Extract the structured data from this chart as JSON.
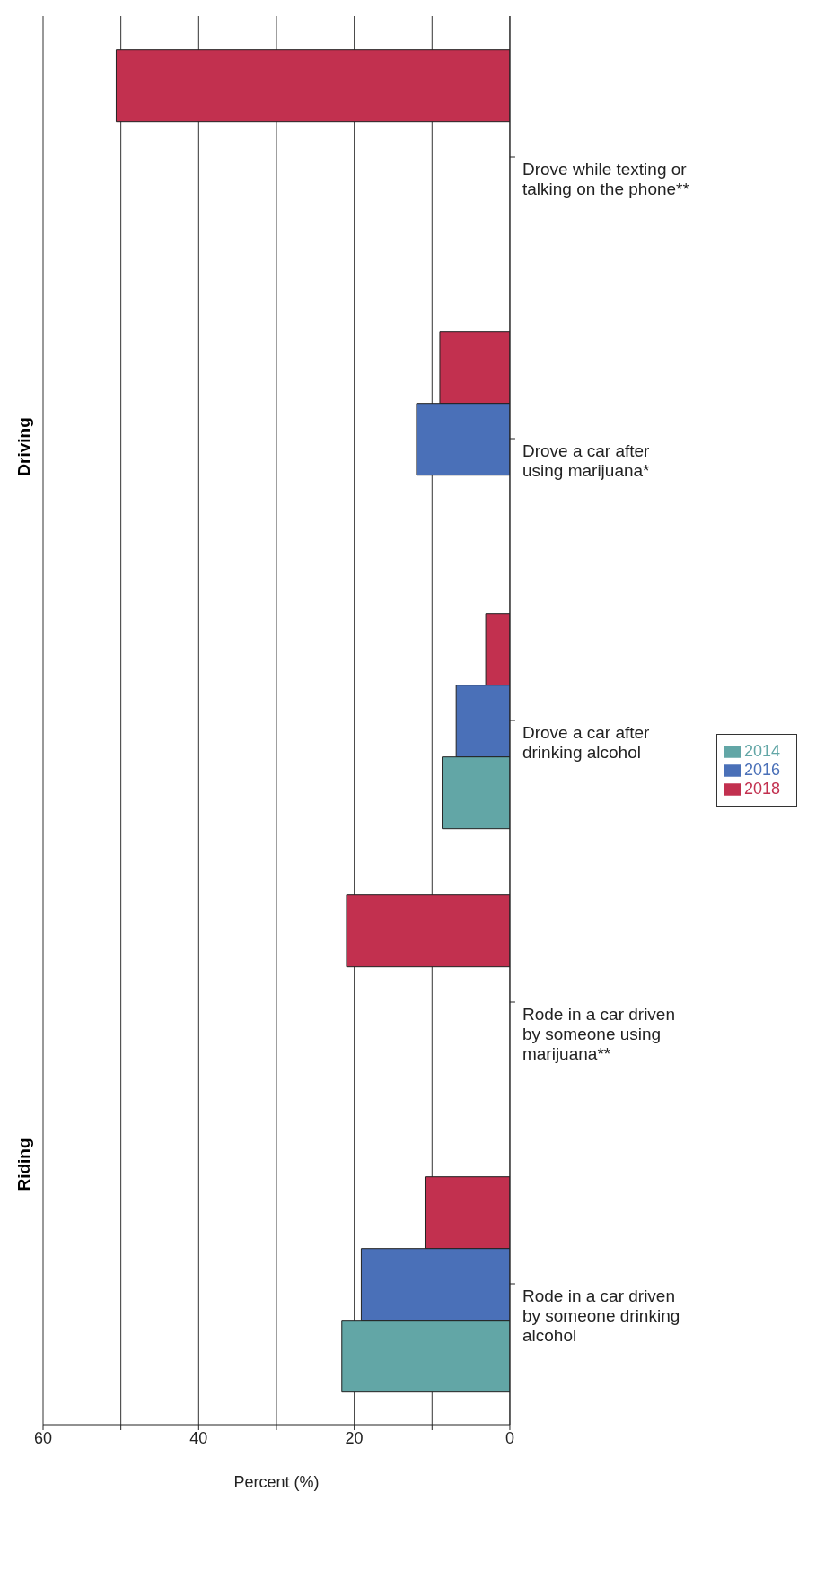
{
  "chart_data": {
    "type": "bar",
    "orientation": "horizontal",
    "xlabel": "Percent (%)",
    "categories": [
      "Drove while texting or talking on the phone**",
      "Drove a car after using marijuana*",
      "Drove a car after drinking alcohol",
      "Rode in a car driven by someone using marijuana**",
      "Rode in a car driven by someone drinking alcohol"
    ],
    "series": [
      {
        "name": "2018",
        "color": "#c2304f",
        "values": [
          50.6,
          9,
          3.1,
          21,
          10.9
        ]
      },
      {
        "name": "2016",
        "color": "#4a70b8",
        "values": [
          null,
          12,
          6.9,
          null,
          19.1
        ]
      },
      {
        "name": "2014",
        "color": "#62a6a6",
        "values": [
          null,
          null,
          8.7,
          null,
          21.6
        ]
      }
    ],
    "xlim": [
      60,
      0
    ],
    "xticks": [
      60,
      {
        "value": 50,
        "label": null
      },
      40,
      {
        "value": 30,
        "label": null
      },
      20,
      {
        "value": 10,
        "label": null
      },
      0
    ],
    "annotations": [
      "Driving",
      "Riding"
    ],
    "grid": "x",
    "legend": "right"
  }
}
